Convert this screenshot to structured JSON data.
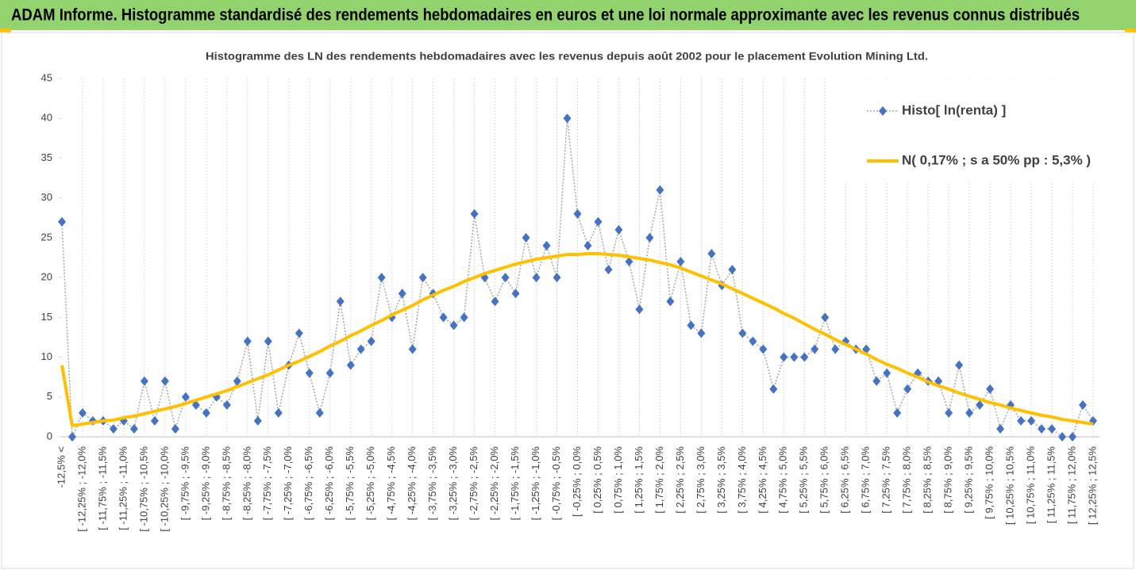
{
  "chart_data": {
    "type": "line",
    "header": "ADAM Informe. Histogramme standardisé des rendements hebdomadaires en euros et une loi normale approximante avec les revenus connus distribués",
    "title": "Histogramme  des LN des rendements hebdomadaires avec les revenus depuis août 2002 pour le placement Evolution Mining Ltd.",
    "categories": [
      "-12,5% <",
      null,
      "[ -12,25% ; -12,0%",
      null,
      "[ -11,75% ; -11,5%",
      null,
      "[ -11,25% ; -11,0%",
      null,
      "[ -10,75% ; -10,5%",
      null,
      "[ -10,25% ; -10,0%",
      null,
      "[ -9,75% ; -9,5%",
      null,
      "[ -9,25% ; -9,0%",
      null,
      "[ -8,75% ; -8,5%",
      null,
      "[ -8,25% ; -8,0%",
      null,
      "[ -7,75% ; -7,5%",
      null,
      "[ -7,25% ; -7,0%",
      null,
      "[ -6,75% ; -6,5%",
      null,
      "[ -6,25% ; -6,0%",
      null,
      "[ -5,75% ; -5,5%",
      null,
      "[ -5,25% ; -5,0%",
      null,
      "[ -4,75% ; -4,5%",
      null,
      "[ -4,25% ; -4,0%",
      null,
      "[ -3,75% ; -3,5%",
      null,
      "[ -3,25% ; -3,0%",
      null,
      "[ -2,75% ; -2,5%",
      null,
      "[ -2,25% ; -2,0%",
      null,
      "[ -1,75% ; -1,5%",
      null,
      "[ -1,25% ; -1,0%",
      null,
      "[ -0,75% ; -0,5%",
      null,
      "[ -0,25% ; 0,0%",
      null,
      "[ 0,25% ; 0,5%",
      null,
      "[ 0,75% ; 1,0%",
      null,
      "[ 1,25% ; 1,5%",
      null,
      "[ 1,75% ; 2,0%",
      null,
      "[ 2,25% ; 2,5%",
      null,
      "[ 2,75% ; 3,0%",
      null,
      "[ 3,25% ; 3,5%",
      null,
      "[ 3,75% ; 4,0%",
      null,
      "[ 4,25% ; 4,5%",
      null,
      "[ 4,75% ; 5,0%",
      null,
      "[ 5,25% ; 5,5%",
      null,
      "[ 5,75% ; 6,0%",
      null,
      "[ 6,25% ; 6,5%",
      null,
      "[ 6,75% ; 7,0%",
      null,
      "[ 7,25% ; 7,5%",
      null,
      "[ 7,75% ; 8,0%",
      null,
      "[ 8,25% ; 8,5%",
      null,
      "[ 8,75% ; 9,0%",
      null,
      "[ 9,25% ; 9,5%",
      null,
      "[ 9,75% ; 10,0%",
      null,
      "[ 10,25% ; 10,5%",
      null,
      "[ 10,75% ; 11,0%",
      null,
      "[ 11,25% ; 11,5%",
      null,
      "[ 11,75% ; 12,0%",
      null,
      "[ 12,25% ; 12,5%"
    ],
    "series": [
      {
        "name": "Histo[ ln(renta) ]",
        "color": "#4472c4",
        "line_color": "#a5a5a5",
        "values": [
          27,
          0,
          3,
          2,
          2,
          1,
          2,
          1,
          7,
          2,
          7,
          1,
          5,
          4,
          3,
          5,
          4,
          7,
          12,
          2,
          12,
          3,
          9,
          13,
          8,
          3,
          8,
          17,
          9,
          11,
          12,
          20,
          15,
          18,
          11,
          20,
          18,
          15,
          14,
          15,
          28,
          20,
          17,
          20,
          18,
          25,
          20,
          24,
          20,
          40,
          28,
          24,
          27,
          21,
          26,
          22,
          16,
          25,
          31,
          17,
          22,
          14,
          13,
          23,
          19,
          21,
          13,
          12,
          11,
          6,
          10,
          10,
          10,
          11,
          15,
          11,
          12,
          11,
          11,
          7,
          8,
          3,
          6,
          8,
          7,
          7,
          3,
          9,
          3,
          4,
          6,
          1,
          4,
          2,
          2,
          1,
          1,
          0,
          0,
          4,
          2
        ]
      },
      {
        "name": "N( 0,17% ; s a 50% pp : 5,3% )",
        "color": "#ffc000",
        "values": [
          9,
          1.4,
          1.6,
          1.8,
          2.0,
          2.1,
          2.4,
          2.6,
          2.9,
          3.2,
          3.5,
          3.8,
          4.2,
          4.6,
          5.0,
          5.4,
          5.8,
          6.3,
          6.8,
          7.3,
          7.8,
          8.4,
          9.0,
          9.5,
          10.1,
          10.7,
          11.4,
          12.0,
          12.7,
          13.3,
          14.0,
          14.6,
          15.3,
          15.9,
          16.5,
          17.2,
          17.8,
          18.4,
          18.9,
          19.5,
          20.0,
          20.5,
          20.9,
          21.3,
          21.7,
          22.0,
          22.3,
          22.5,
          22.7,
          22.9,
          22.9,
          23.0,
          23.0,
          22.9,
          22.8,
          22.6,
          22.4,
          22.2,
          21.9,
          21.6,
          21.2,
          20.7,
          20.2,
          19.7,
          19.2,
          18.6,
          18.0,
          17.4,
          16.8,
          16.2,
          15.5,
          14.9,
          14.2,
          13.5,
          12.9,
          12.2,
          11.6,
          11.0,
          10.4,
          9.7,
          9.1,
          8.6,
          8.0,
          7.5,
          6.9,
          6.4,
          6.0,
          5.5,
          5.1,
          4.7,
          4.3,
          4.0,
          3.6,
          3.3,
          3.0,
          2.7,
          2.5,
          2.2,
          2.0,
          1.8,
          1.6
        ]
      }
    ],
    "ylim": [
      0,
      45
    ],
    "yticks": [
      0,
      5,
      10,
      15,
      20,
      25,
      30,
      35,
      40,
      45
    ],
    "grid": true,
    "legend": "upper right"
  }
}
